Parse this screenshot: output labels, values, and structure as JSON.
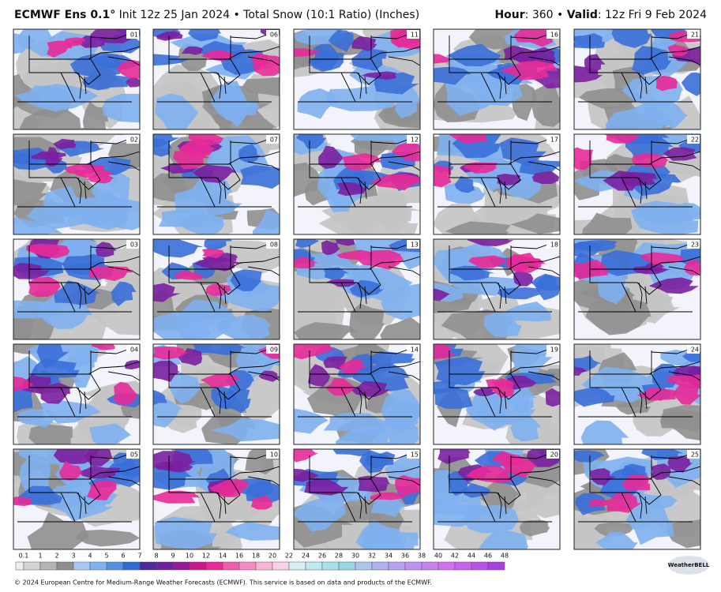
{
  "header": {
    "model": "ECMWF Ens 0.1°",
    "description": "Init 12z 25 Jan 2024 • Total Snow (10:1 Ratio) (Inches)",
    "hour_label": "Hour",
    "hour_value": ": 360 • ",
    "valid_label": "Valid",
    "valid_value": ": 12z Fri 9 Feb 2024"
  },
  "panels": [
    "01",
    "06",
    "11",
    "16",
    "21",
    "02",
    "07",
    "12",
    "17",
    "22",
    "03",
    "08",
    "13",
    "18",
    "23",
    "04",
    "09",
    "14",
    "19",
    "24",
    "05",
    "10",
    "15",
    "20",
    "25"
  ],
  "colorbar": {
    "ticks": [
      0.1,
      1,
      2,
      3,
      4,
      5,
      6,
      7,
      8,
      9,
      10,
      12,
      14,
      16,
      18,
      20,
      22,
      24,
      26,
      28,
      30,
      32,
      34,
      36,
      38,
      40,
      42,
      44,
      46,
      48
    ],
    "colors": [
      "#d4d4d4",
      "#b4b4b4",
      "#8f8f8f",
      "#a8c9f3",
      "#80b0ef",
      "#548fe4",
      "#2f6bd3",
      "#4a2a9e",
      "#6e1f9f",
      "#991799",
      "#c8168c",
      "#e82a98",
      "#f05cae",
      "#f58bc5",
      "#f9b4d8",
      "#f5d2e7",
      "#d6eff5",
      "#bdeaf1",
      "#a7e2ea",
      "#98d5e5",
      "#aec6ef",
      "#b2b2ee",
      "#b7a2f0",
      "#bf92f0",
      "#c782f2",
      "#ce72f3",
      "#c763ef",
      "#b853e8",
      "#a443e1"
    ]
  },
  "footer": "© 2024 European Centre for Medium-Range Weather Forecasts (ECMWF). This service is based on data and products of the ECMWF.",
  "logo": "WeatherBELL"
}
